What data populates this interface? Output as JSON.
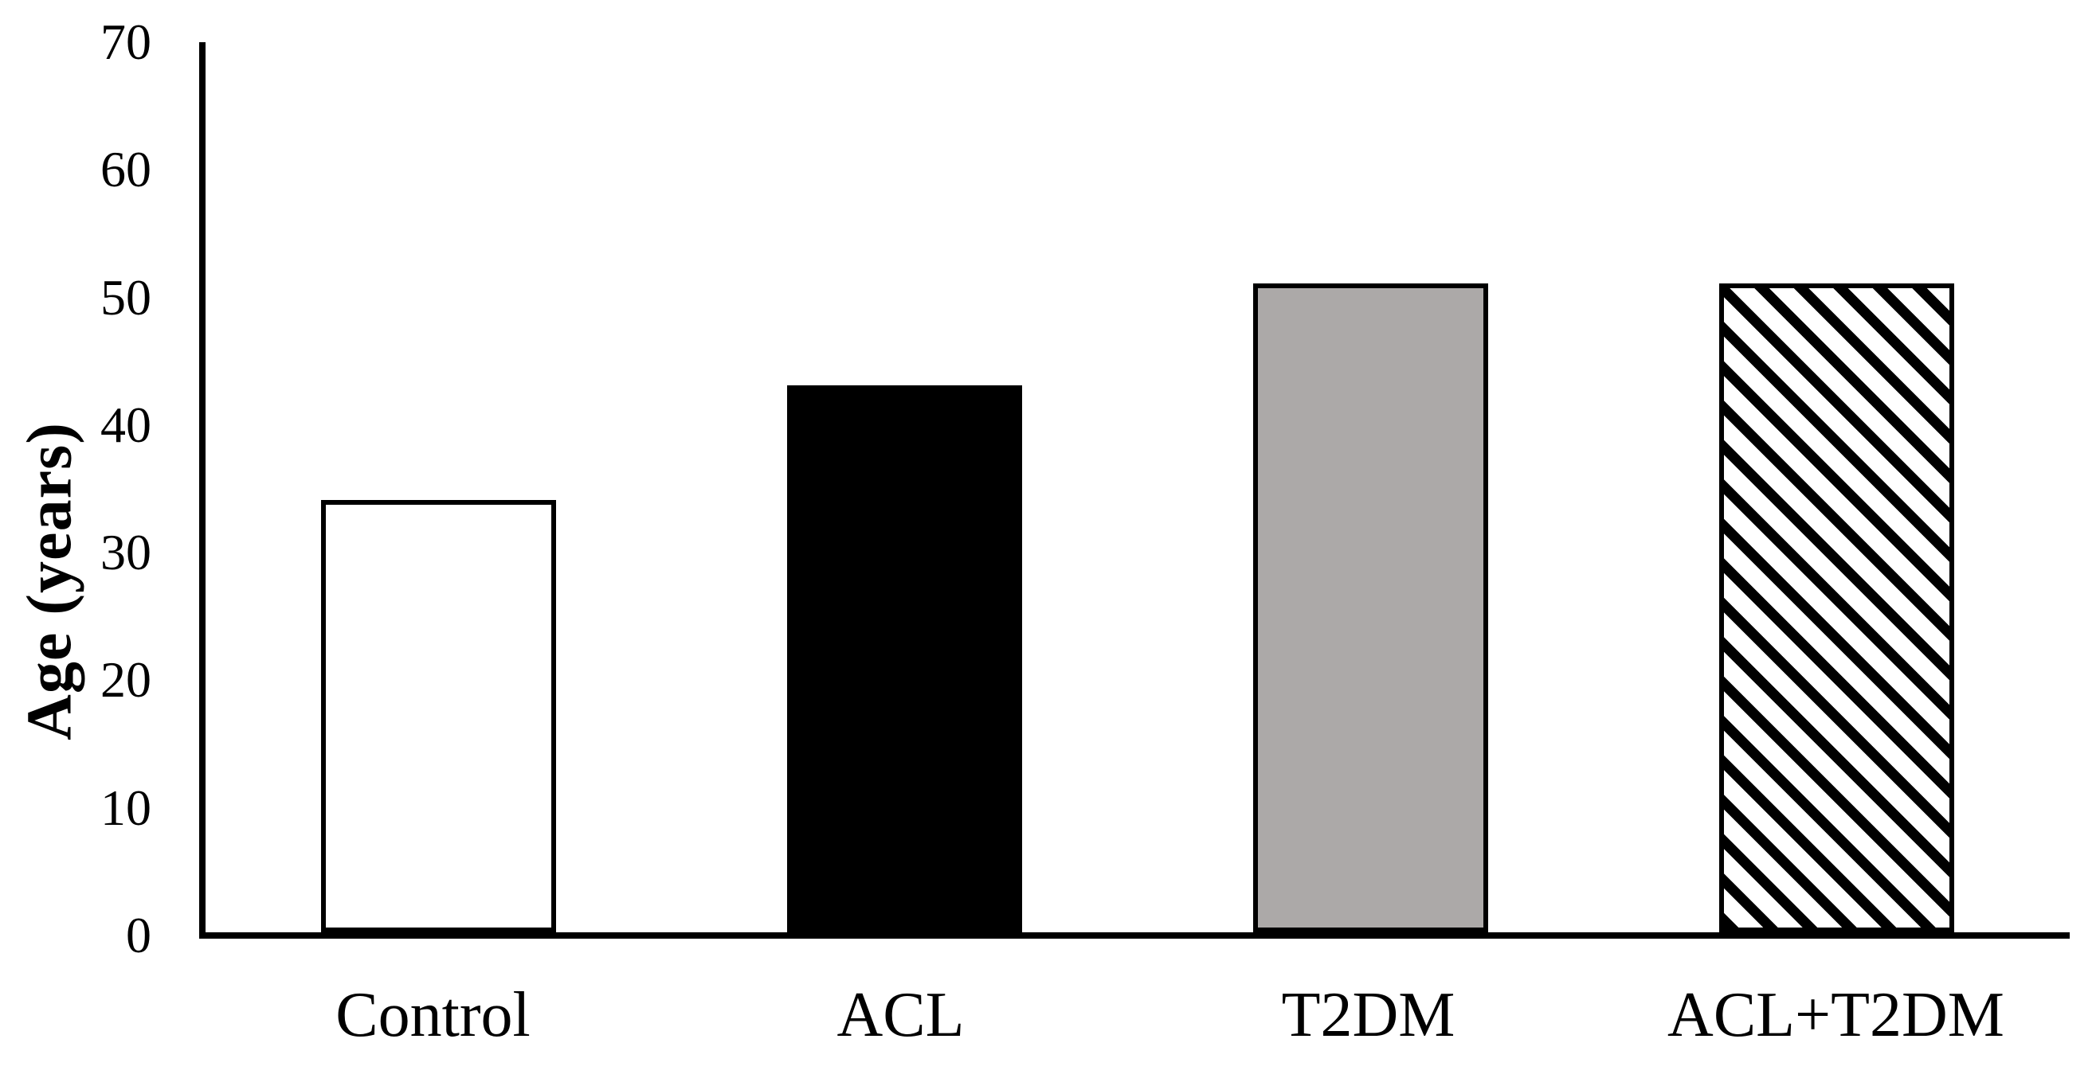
{
  "chart_data": {
    "type": "bar",
    "title": "",
    "xlabel": "",
    "ylabel": "Age (years)",
    "categories": [
      "Control",
      "ACL",
      "T2DM",
      "ACL+T2DM"
    ],
    "values": [
      34,
      43,
      51,
      51
    ],
    "ylim": [
      0,
      70
    ],
    "ytick_interval": 10,
    "ytick_labels": [
      "70",
      "60",
      "50",
      "40",
      "30",
      "20",
      "10",
      "0"
    ],
    "grid": "off",
    "legend": "none",
    "bars": [
      {
        "label": "Control",
        "value": 34,
        "fill": "#FFFFFF",
        "pattern": "solid"
      },
      {
        "label": "ACL",
        "value": 43,
        "fill": "#000000",
        "pattern": "solid"
      },
      {
        "label": "T2DM",
        "value": 51,
        "fill": "#ACA9A8",
        "pattern": "solid"
      },
      {
        "label": "ACL+T2DM",
        "value": 51,
        "fill": "#FFFFFF",
        "pattern": "diagonal-hatch"
      }
    ],
    "colors": {
      "axis": "#000000",
      "bar_border": "#000000",
      "hatch_stripe": "#000000",
      "gray_fill": "#ACA9A8",
      "background": "#FFFFFF"
    }
  }
}
